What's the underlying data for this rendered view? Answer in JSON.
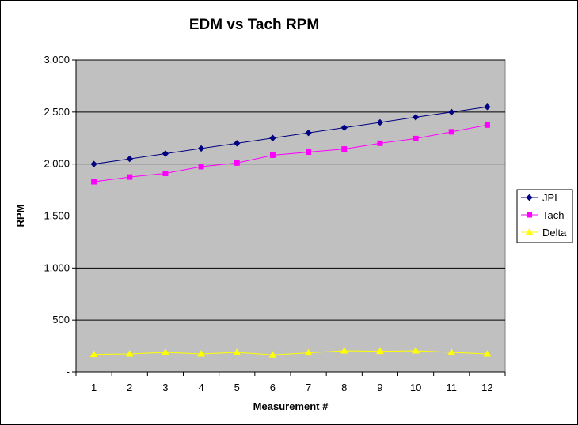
{
  "chart_data": {
    "type": "line",
    "title": "EDM vs Tach RPM",
    "xlabel": "Measurement #",
    "ylabel": "RPM",
    "categories": [
      "1",
      "2",
      "3",
      "4",
      "5",
      "6",
      "7",
      "8",
      "9",
      "10",
      "11",
      "12"
    ],
    "ylim": [
      0,
      3000
    ],
    "yticks": [
      0,
      500,
      1000,
      1500,
      2000,
      2500,
      3000
    ],
    "ytick_labels": [
      "-",
      "500",
      "1,000",
      "1,500",
      "2,000",
      "2,500",
      "3,000"
    ],
    "grid": "horizontal major gridlines",
    "plot_background": "#c0c0c0",
    "legend_position": "right",
    "series": [
      {
        "name": "JPI",
        "color": "#000080",
        "marker": "diamond",
        "values": [
          2000,
          2050,
          2100,
          2150,
          2200,
          2250,
          2300,
          2350,
          2400,
          2450,
          2500,
          2550
        ]
      },
      {
        "name": "Tach",
        "color": "#ff00ff",
        "marker": "square",
        "values": [
          1830,
          1875,
          1910,
          1975,
          2010,
          2085,
          2115,
          2145,
          2200,
          2245,
          2310,
          2375
        ]
      },
      {
        "name": "Delta",
        "color": "#ffff00",
        "marker": "triangle",
        "values": [
          170,
          175,
          190,
          175,
          190,
          165,
          185,
          205,
          200,
          205,
          190,
          175
        ]
      }
    ]
  }
}
